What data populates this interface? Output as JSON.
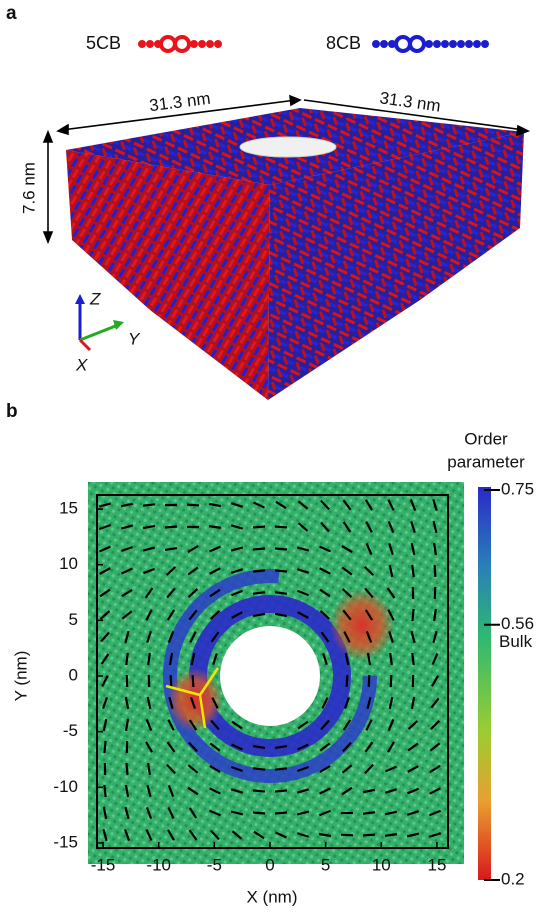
{
  "panel_a": {
    "label": "a",
    "legend": [
      {
        "name": "5CB",
        "color": "#e8141c"
      },
      {
        "name": "8CB",
        "color": "#1c1cd0"
      }
    ],
    "dimensions": [
      "31.3 nm",
      "31.3 nm",
      "7.6 nm"
    ],
    "axes": [
      "Z",
      "Y",
      "X"
    ]
  },
  "panel_b": {
    "label": "b",
    "xlabel": "X (nm)",
    "ylabel": "Y (nm)",
    "xlim": [
      -16,
      16
    ],
    "ylim": [
      -16,
      16
    ],
    "xticks": [
      -15,
      -10,
      -5,
      0,
      5,
      10,
      15
    ],
    "yticks": [
      -15,
      -10,
      -5,
      0,
      5,
      10,
      15
    ],
    "colorbar": {
      "title": [
        "Order",
        "parameter"
      ],
      "clim": [
        0.2,
        0.75
      ],
      "ticks": [
        0.75,
        0.56,
        0.2
      ],
      "annotation": "Bulk"
    }
  }
}
